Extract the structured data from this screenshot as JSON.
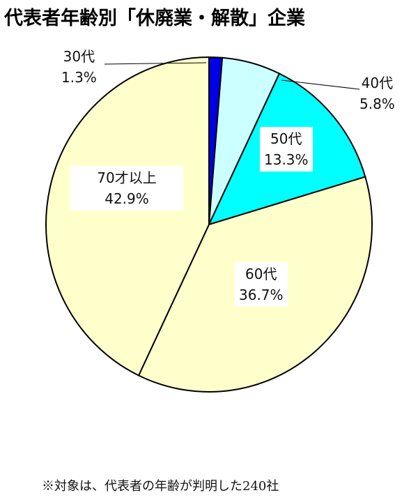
{
  "chart_data": {
    "type": "pie",
    "title": "代表者年齢別「休廃業・解散」企業",
    "start": "top",
    "direction": "clockwise",
    "slices": [
      {
        "label": "30代",
        "value": 1.3,
        "value_label": "1.3%",
        "color": "#0000e6"
      },
      {
        "label": "40代",
        "value": 5.8,
        "value_label": "5.8%",
        "color": "#ccffff"
      },
      {
        "label": "50代",
        "value": 13.3,
        "value_label": "13.3%",
        "color": "#00ffff"
      },
      {
        "label": "60代",
        "value": 36.7,
        "value_label": "36.7%",
        "color": "#ffffcc"
      },
      {
        "label": "70才以上",
        "value": 42.9,
        "value_label": "42.9%",
        "color": "#ffffcc"
      }
    ],
    "footnote": "※対象は、代表者の年齢が判明した240社"
  }
}
